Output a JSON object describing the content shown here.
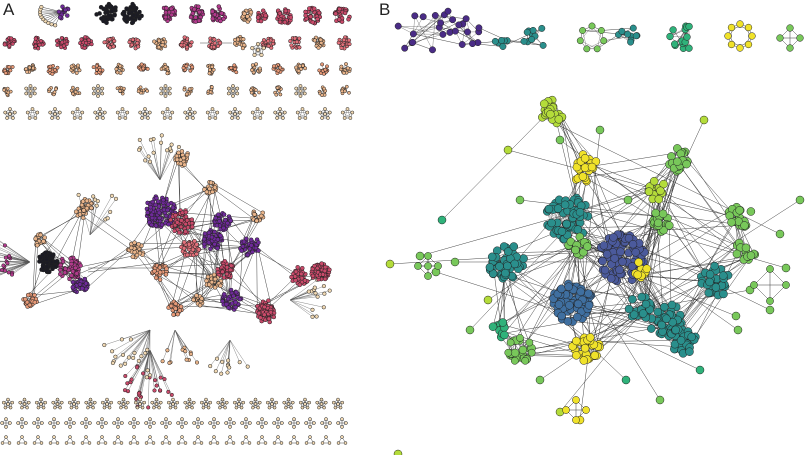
{
  "panels": {
    "a": {
      "label": "A"
    },
    "b": {
      "label": "B"
    }
  },
  "colors": {
    "cream": "#f0d8b2",
    "tan": "#e9b48a",
    "salmon": "#e89a78",
    "coral": "#e2707a",
    "rose": "#c94a6a",
    "magenta": "#b13a8c",
    "purple": "#6f2a9a",
    "dark": "#1b1b24",
    "v_purple": "#4a2c86",
    "v_indigo": "#4b5a9c",
    "v_blue": "#3f6fa0",
    "v_teal": "#2a8f8c",
    "v_green": "#2fb27a",
    "v_lgreen": "#78c85a",
    "v_lime": "#b4dc3a",
    "v_yellow": "#f0e22a"
  },
  "icons": {
    "network_a": "network-graph-magma",
    "network_b": "network-graph-viridis"
  }
}
